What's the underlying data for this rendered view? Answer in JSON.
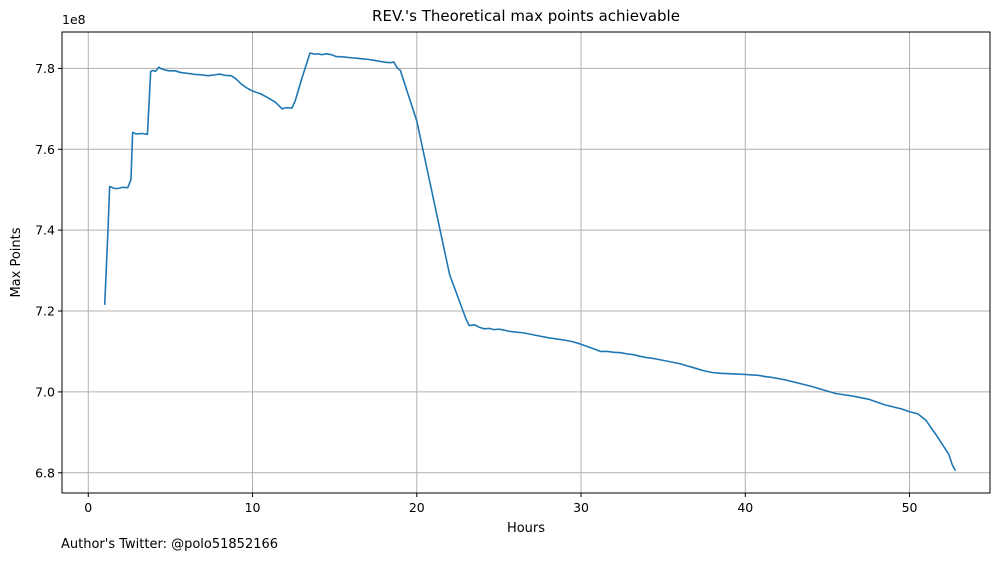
{
  "chart_data": {
    "type": "line",
    "title": "REV.'s Theoretical max points achievable",
    "xlabel": "Hours",
    "ylabel": "Max Points",
    "y_offset_label": "1e8",
    "y_scale": 100000000,
    "xlim": [
      -1.6,
      54.9
    ],
    "ylim": [
      6.75,
      7.89
    ],
    "x_ticks": [
      0,
      10,
      20,
      30,
      40,
      50
    ],
    "y_ticks": [
      6.8,
      7.0,
      7.2,
      7.4,
      7.6,
      7.8
    ],
    "x_tick_labels": [
      "0",
      "10",
      "20",
      "30",
      "40",
      "50"
    ],
    "y_tick_labels": [
      "6.8",
      "7.0",
      "7.2",
      "7.4",
      "7.6",
      "7.8"
    ],
    "grid": true,
    "line_color": "#1f77b4",
    "series": [
      {
        "x": [
          1.0,
          1.2,
          1.3,
          1.6,
          1.8,
          2.1,
          2.4,
          2.6,
          2.7,
          2.9,
          3.3,
          3.6,
          3.8,
          3.9,
          4.1,
          4.3,
          4.4,
          4.6,
          4.9,
          5.3,
          5.6,
          6.0,
          6.5,
          6.9,
          7.3,
          7.7,
          8.0,
          8.3,
          8.7,
          9.0,
          9.3,
          9.6,
          10.0,
          10.5,
          11.0,
          11.4,
          11.8,
          12.1,
          12.4,
          12.6,
          13.0,
          13.5,
          13.8,
          14.0,
          14.2,
          14.5,
          14.8,
          15.1,
          15.4,
          15.8,
          16.1,
          16.4,
          16.8,
          17.1,
          17.4,
          17.8,
          18.1,
          18.4,
          18.6,
          18.8,
          19.0,
          20.0,
          21.0,
          22.0,
          23.0,
          23.2,
          23.5,
          23.8,
          24.1,
          24.4,
          24.7,
          25.0,
          25.3,
          25.6,
          26.0,
          26.5,
          27.0,
          27.5,
          28.0,
          28.5,
          29.0,
          29.5,
          30.0,
          30.4,
          30.8,
          31.2,
          31.6,
          32.0,
          32.4,
          32.8,
          33.2,
          33.6,
          34.0,
          34.5,
          35.0,
          35.5,
          36.0,
          36.5,
          37.0,
          37.5,
          38.0,
          38.5,
          39.0,
          39.5,
          40.0,
          40.4,
          40.8,
          41.2,
          41.6,
          42.0,
          42.4,
          42.8,
          43.2,
          43.6,
          44.0,
          44.5,
          45.0,
          45.5,
          46.0,
          46.5,
          47.0,
          47.5,
          48.0,
          48.5,
          49.0,
          49.5,
          50.0,
          50.5,
          51.0,
          51.3,
          51.6,
          52.0,
          52.4,
          52.6,
          52.8
        ],
        "y": [
          7.215,
          7.4,
          7.508,
          7.503,
          7.503,
          7.506,
          7.505,
          7.525,
          7.642,
          7.638,
          7.639,
          7.637,
          7.792,
          7.795,
          7.793,
          7.803,
          7.8,
          7.797,
          7.794,
          7.794,
          7.79,
          7.788,
          7.785,
          7.784,
          7.782,
          7.784,
          7.786,
          7.783,
          7.782,
          7.774,
          7.762,
          7.753,
          7.744,
          7.737,
          7.726,
          7.716,
          7.7,
          7.703,
          7.702,
          7.72,
          7.775,
          7.838,
          7.835,
          7.836,
          7.834,
          7.836,
          7.834,
          7.829,
          7.829,
          7.827,
          7.826,
          7.825,
          7.823,
          7.822,
          7.82,
          7.817,
          7.815,
          7.814,
          7.816,
          7.802,
          7.795,
          7.67,
          7.48,
          7.29,
          7.18,
          7.164,
          7.166,
          7.16,
          7.156,
          7.157,
          7.154,
          7.155,
          7.153,
          7.15,
          7.148,
          7.146,
          7.142,
          7.138,
          7.134,
          7.131,
          7.128,
          7.124,
          7.118,
          7.112,
          7.106,
          7.1,
          7.1,
          7.098,
          7.097,
          7.094,
          7.092,
          7.088,
          7.085,
          7.082,
          7.078,
          7.074,
          7.07,
          7.064,
          7.058,
          7.052,
          7.048,
          7.046,
          7.045,
          7.044,
          7.043,
          7.042,
          7.041,
          7.038,
          7.036,
          7.033,
          7.03,
          7.026,
          7.022,
          7.018,
          7.014,
          7.008,
          7.002,
          6.996,
          6.993,
          6.99,
          6.986,
          6.982,
          6.975,
          6.968,
          6.963,
          6.958,
          6.951,
          6.946,
          6.93,
          6.912,
          6.895,
          6.87,
          6.845,
          6.82,
          6.805
        ]
      }
    ]
  },
  "footer": {
    "author_credit": "Author's Twitter: @polo51852166"
  }
}
